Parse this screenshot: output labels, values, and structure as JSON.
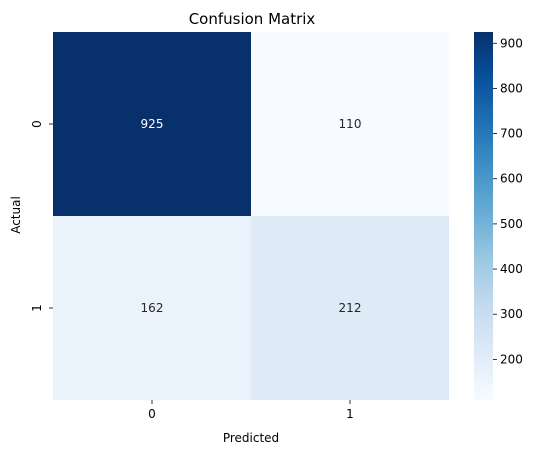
{
  "chart_data": {
    "type": "heatmap",
    "title": "Confusion Matrix",
    "xlabel": "Predicted",
    "ylabel": "Actual",
    "x_categories": [
      "0",
      "1"
    ],
    "y_categories": [
      "0",
      "1"
    ],
    "values": [
      [
        925,
        110
      ],
      [
        162,
        212
      ]
    ],
    "annotations": [
      [
        "925",
        "110"
      ],
      [
        "162",
        "212"
      ]
    ],
    "colormap": "Blues",
    "colorbar": {
      "vmin": 110,
      "vmax": 925,
      "ticks": [
        200,
        300,
        400,
        500,
        600,
        700,
        800,
        900
      ],
      "tick_labels": [
        "200",
        "300",
        "400",
        "500",
        "600",
        "700",
        "800",
        "900"
      ]
    },
    "grid": false,
    "legend": "colorbar-right"
  }
}
